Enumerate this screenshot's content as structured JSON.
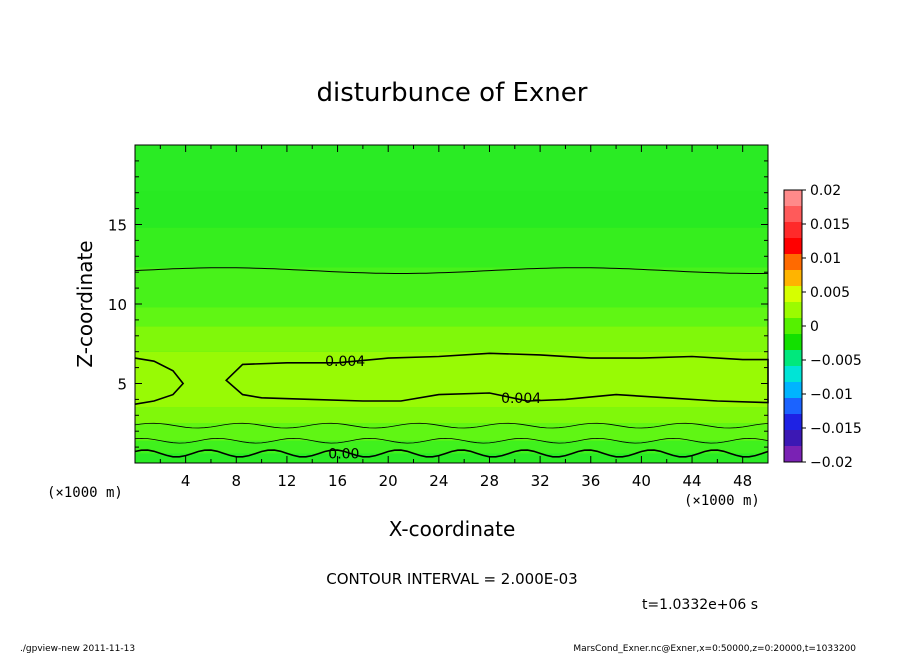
{
  "chart_data": {
    "type": "heatmap",
    "title": "disturbunce of Exner",
    "xlabel": "X-coordinate",
    "ylabel": "Z-coordinate",
    "x_unit": "(×1000 m)",
    "y_unit": "(×1000 m)",
    "xlim": [
      0,
      50
    ],
    "ylim": [
      0,
      20
    ],
    "x_ticks": [
      4,
      8,
      12,
      16,
      20,
      24,
      28,
      32,
      36,
      40,
      44,
      48
    ],
    "y_ticks": [
      5,
      10,
      15
    ],
    "contour_interval_text": "CONTOUR INTERVAL = 2.000E-03",
    "time_text": "t=1.0332e+06 s",
    "contour_labels": [
      {
        "text": "0.004",
        "x": 16.6,
        "z": 6.4
      },
      {
        "text": "0.004",
        "x": 30.5,
        "z": 4.1
      },
      {
        "text": "0.00",
        "x": 16.5,
        "z": 0.6
      }
    ],
    "colorbar": {
      "levels": [
        0.02,
        0.0175,
        0.015,
        0.0125,
        0.01,
        0.0075,
        0.005,
        0.0025,
        0,
        -0.0025,
        -0.005,
        -0.0075,
        -0.01,
        -0.0125,
        -0.015,
        -0.0175,
        -0.02
      ],
      "colors": [
        "#ff8a8a",
        "#ff5a5a",
        "#ff2a2a",
        "#ff0000",
        "#ff6a00",
        "#ffb400",
        "#d6ff00",
        "#9bfb00",
        "#55f100",
        "#12e000",
        "#00e87c",
        "#00e4d6",
        "#00b4ff",
        "#1b63ff",
        "#1e22e4",
        "#3c18b4",
        "#7a22b4"
      ],
      "tick_labels": [
        "0.02",
        "0.015",
        "0.01",
        "0.005",
        "0",
        "−0.005",
        "−0.01",
        "−0.015",
        "−0.02"
      ]
    },
    "bands": [
      {
        "z": 0.6,
        "color": "#2aeb24"
      },
      {
        "z": 1.4,
        "color": "#40f11d"
      },
      {
        "z": 2.5,
        "color": "#60f614"
      },
      {
        "z": 3.5,
        "color": "#80f80a"
      },
      {
        "z": 7.0,
        "color": "#98fa05"
      },
      {
        "z": 8.6,
        "color": "#80f80a"
      },
      {
        "z": 9.8,
        "color": "#60f614"
      },
      {
        "z": 12.3,
        "color": "#48f21a"
      },
      {
        "z": 14.8,
        "color": "#36ee1e"
      },
      {
        "z": 17.1,
        "color": "#28ea22"
      },
      {
        "z": 20.0,
        "color": "#2aeb24"
      }
    ]
  },
  "footer": {
    "left": "./gpview-new  2011-11-13",
    "right": "MarsCond_Exner.nc@Exner,x=0:50000,z=0:20000,t=1033200"
  }
}
